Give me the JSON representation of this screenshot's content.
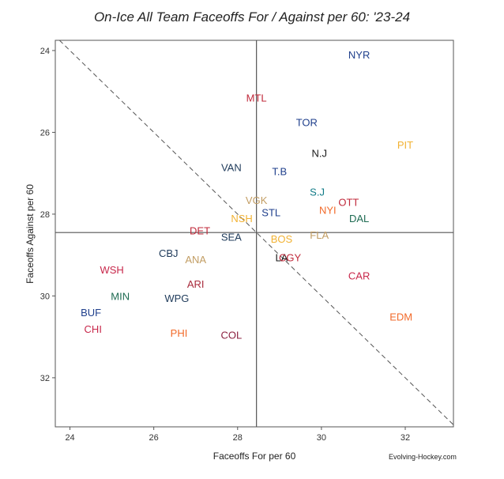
{
  "chart_data": {
    "type": "scatter",
    "title": "On-Ice All Team Faceoffs For / Against per 60: '23-24",
    "xlabel": "Faceoffs For per 60",
    "ylabel": "Faceoffs Against per 60",
    "xlim": [
      23.65,
      33.15
    ],
    "ylim": [
      33.2,
      23.75
    ],
    "y_reversed": true,
    "x_ticks": [
      24,
      26,
      28,
      30,
      32
    ],
    "y_ticks": [
      24,
      26,
      28,
      30,
      32
    ],
    "x_mean": 28.45,
    "y_mean": 28.45,
    "diagonal": "dashed y = x reference line",
    "grid": false,
    "credit": "Evolving-Hockey.com",
    "points": [
      {
        "label": "NYR",
        "x": 30.9,
        "y": 24.1,
        "color": "#1f3f8c"
      },
      {
        "label": "MTL",
        "x": 28.45,
        "y": 25.15,
        "color": "#c0283a"
      },
      {
        "label": "TOR",
        "x": 29.65,
        "y": 25.75,
        "color": "#1f3f8c"
      },
      {
        "label": "PIT",
        "x": 32.0,
        "y": 26.3,
        "color": "#f2b233"
      },
      {
        "label": "N.J",
        "x": 29.95,
        "y": 26.5,
        "color": "#1a1a1a"
      },
      {
        "label": "VAN",
        "x": 27.85,
        "y": 26.85,
        "color": "#1e3a5a"
      },
      {
        "label": "T.B",
        "x": 29.0,
        "y": 26.95,
        "color": "#1f3f8c"
      },
      {
        "label": "S.J",
        "x": 29.9,
        "y": 27.45,
        "color": "#0f7a86"
      },
      {
        "label": "VGK",
        "x": 28.45,
        "y": 27.65,
        "color": "#c29d63"
      },
      {
        "label": "OTT",
        "x": 30.65,
        "y": 27.7,
        "color": "#c0283a"
      },
      {
        "label": "NYI",
        "x": 30.15,
        "y": 27.9,
        "color": "#f26a2a"
      },
      {
        "label": "STL",
        "x": 28.8,
        "y": 27.95,
        "color": "#1f3f8c"
      },
      {
        "label": "NSH",
        "x": 28.1,
        "y": 28.1,
        "color": "#f2b233"
      },
      {
        "label": "DAL",
        "x": 30.9,
        "y": 28.1,
        "color": "#1e6b52"
      },
      {
        "label": "DET",
        "x": 27.1,
        "y": 28.4,
        "color": "#c0283a"
      },
      {
        "label": "FLA",
        "x": 29.95,
        "y": 28.5,
        "color": "#c29d63"
      },
      {
        "label": "SEA",
        "x": 27.85,
        "y": 28.55,
        "color": "#1e3a5a"
      },
      {
        "label": "BOS",
        "x": 29.05,
        "y": 28.6,
        "color": "#f2b233"
      },
      {
        "label": "CBJ",
        "x": 26.35,
        "y": 28.95,
        "color": "#1e3a5a"
      },
      {
        "label": "LA",
        "x": 29.05,
        "y": 29.05,
        "color": "#1a1a1a"
      },
      {
        "label": "CGY",
        "x": 29.25,
        "y": 29.05,
        "color": "#c0283a"
      },
      {
        "label": "ANA",
        "x": 27.0,
        "y": 29.1,
        "color": "#c29d63"
      },
      {
        "label": "WSH",
        "x": 25.0,
        "y": 29.35,
        "color": "#c8284b"
      },
      {
        "label": "CAR",
        "x": 30.9,
        "y": 29.5,
        "color": "#c8284b"
      },
      {
        "label": "ARI",
        "x": 27.0,
        "y": 29.7,
        "color": "#a82a3b"
      },
      {
        "label": "MIN",
        "x": 25.2,
        "y": 30.0,
        "color": "#1e6b52"
      },
      {
        "label": "WPG",
        "x": 26.55,
        "y": 30.05,
        "color": "#1e3a5a"
      },
      {
        "label": "BUF",
        "x": 24.5,
        "y": 30.4,
        "color": "#1f3f8c"
      },
      {
        "label": "EDM",
        "x": 31.9,
        "y": 30.5,
        "color": "#f26a2a"
      },
      {
        "label": "CHI",
        "x": 24.55,
        "y": 30.8,
        "color": "#c8284b"
      },
      {
        "label": "PHI",
        "x": 26.6,
        "y": 30.9,
        "color": "#f26a2a"
      },
      {
        "label": "COL",
        "x": 27.85,
        "y": 30.95,
        "color": "#8b2040"
      }
    ]
  }
}
